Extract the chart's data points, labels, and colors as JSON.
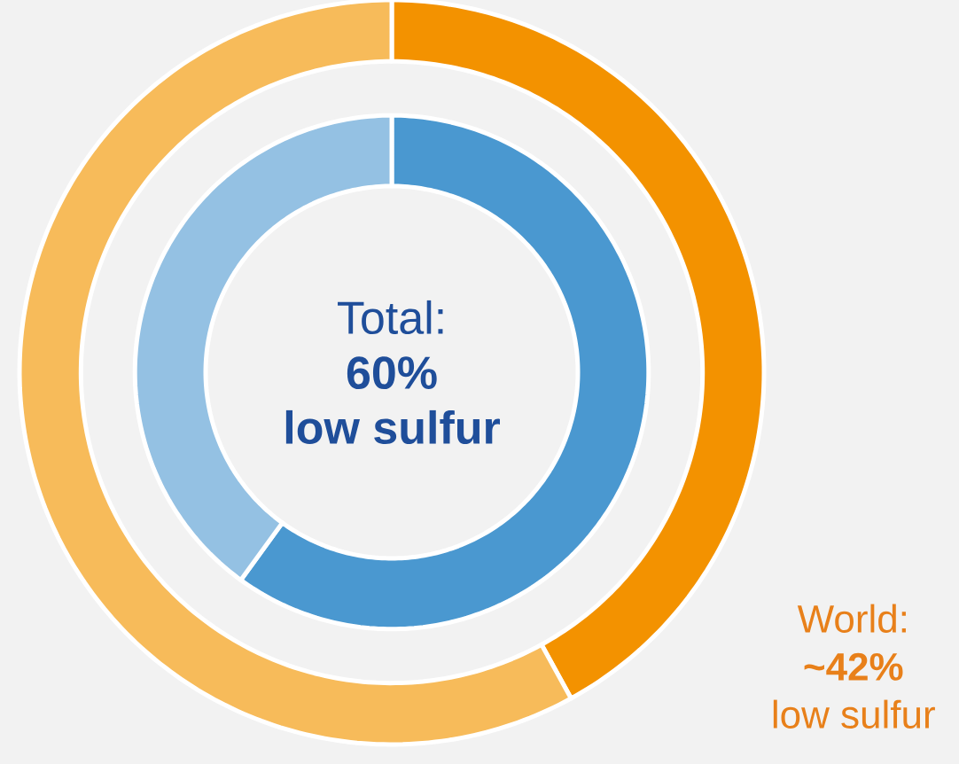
{
  "chart_data": [
    {
      "type": "donut",
      "categories": [
        null,
        null
      ],
      "values": [
        42,
        58
      ],
      "colors": [
        "#f39200",
        "#f7bb5a"
      ],
      "annotations": [
        "World:",
        "~42%",
        "low sulfur"
      ]
    },
    {
      "type": "donut",
      "categories": [
        null,
        null
      ],
      "values": [
        60,
        40
      ],
      "colors": [
        "#4a98d0",
        "#94c1e3"
      ],
      "annotations": [
        "Total:",
        "60%",
        "low sulfur"
      ]
    }
  ]
}
